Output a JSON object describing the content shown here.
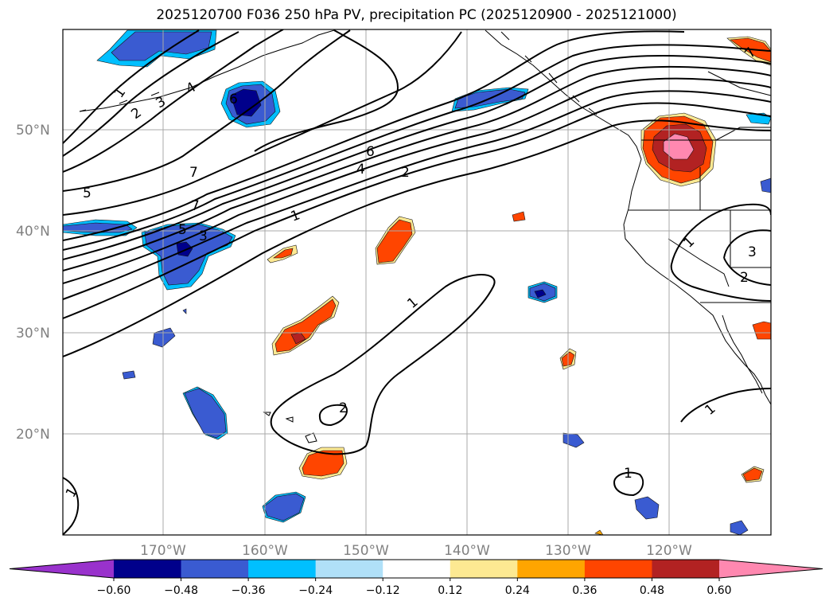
{
  "title": "2025120700 F036 250 hPa PV, precipitation PC (2025120900 - 2025121000)",
  "map": {
    "lat_labels": [
      "50°N",
      "40°N",
      "30°N",
      "20°N"
    ],
    "lon_labels": [
      "170°W",
      "160°W",
      "150°W",
      "140°W",
      "130°W",
      "120°W"
    ]
  },
  "colorbar": {
    "ticks": [
      "−0.60",
      "−0.48",
      "−0.36",
      "−0.24",
      "−0.12",
      "0.12",
      "0.24",
      "0.36",
      "0.48",
      "0.60"
    ],
    "colors": [
      "#9932cc",
      "#00008b",
      "#3a5bd1",
      "#00bfff",
      "#b0e0f8",
      "#ffffff",
      "#fde992",
      "#ffa500",
      "#ff4500",
      "#b22222",
      "#ff88b0"
    ]
  },
  "contour_labels": {
    "c1": "1",
    "c2": "2",
    "c3": "3",
    "c4": "4",
    "c5": "5",
    "c6": "6",
    "c7": "7"
  }
}
